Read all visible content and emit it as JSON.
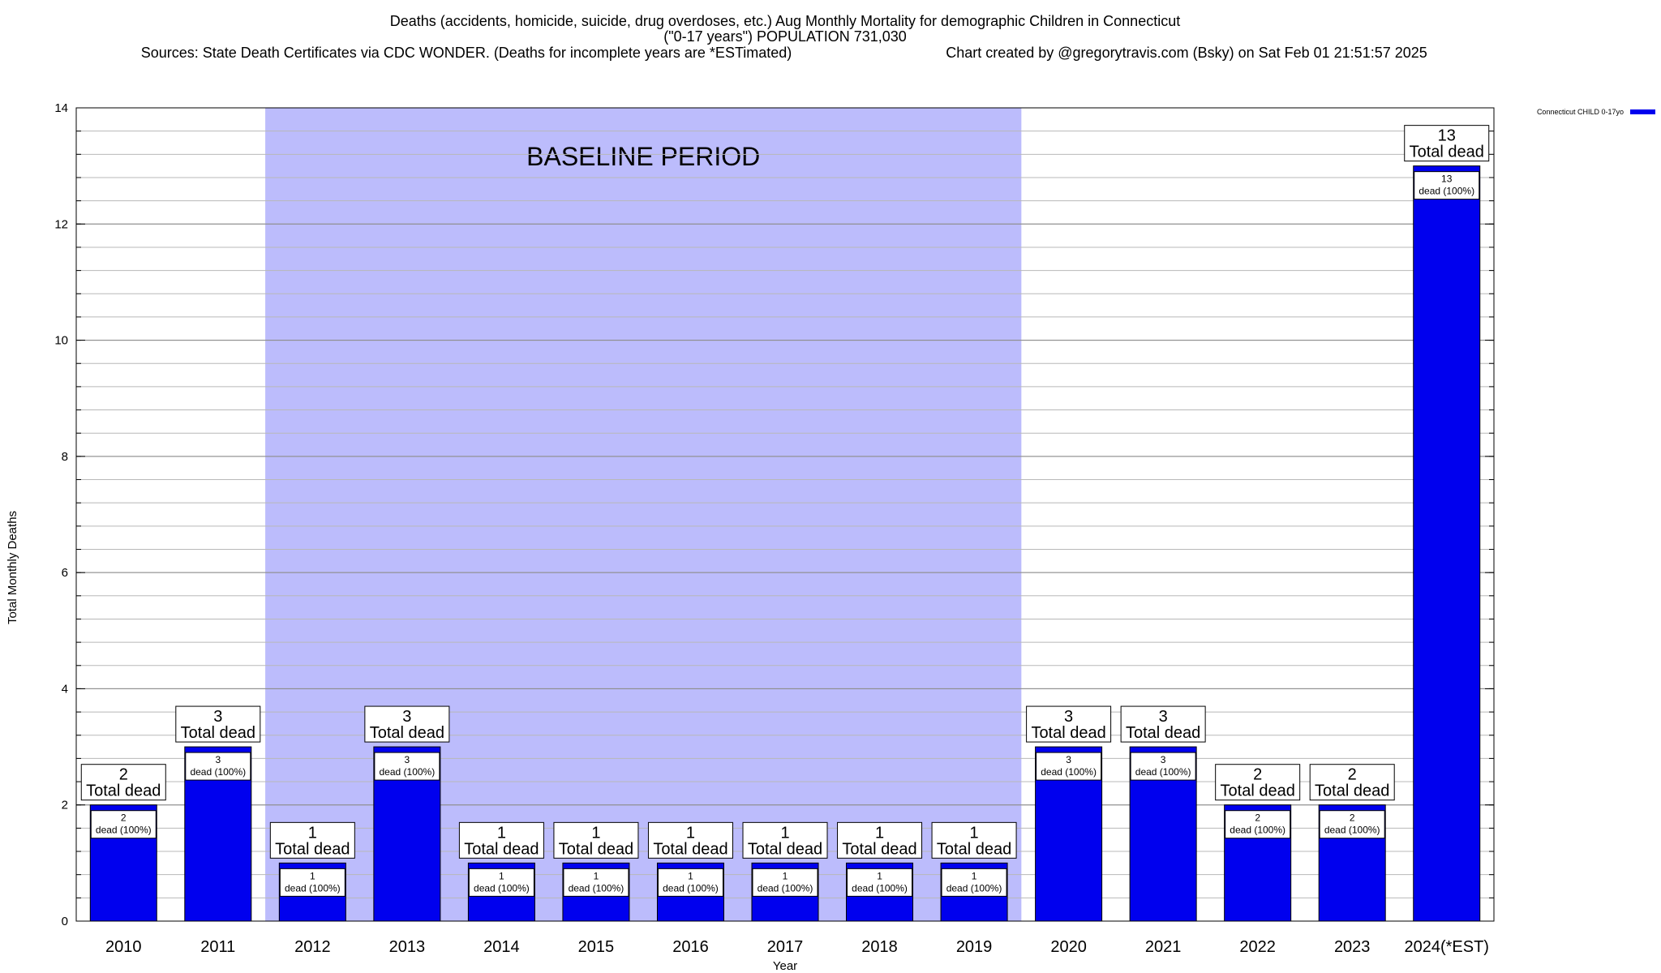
{
  "header": {
    "title_line1": "Deaths (accidents, homicide, suicide, drug overdoses, etc.) Aug Monthly Mortality for demographic Children in Connecticut",
    "title_line2": "(\"0-17 years\") POPULATION 731,030",
    "sources": "Sources: State Death Certificates via CDC WONDER. (Deaths for incomplete years are *ESTimated)",
    "credit": "Chart created by @gregorytravis.com (Bsky) on Sat Feb 01 21:51:57 2025"
  },
  "chart_data": {
    "type": "bar",
    "title": "Deaths (accidents, homicide, suicide, drug overdoses, etc.) Aug Monthly Mortality for demographic Children in Connecticut",
    "xlabel": "Year",
    "ylabel": "Total Monthly Deaths",
    "ylim": [
      0,
      14
    ],
    "yticks": [
      0,
      2,
      4,
      6,
      8,
      10,
      12,
      14
    ],
    "minor_ytick_step": 0.4,
    "grid": true,
    "legend_position": "top-right",
    "categories": [
      "2010",
      "2011",
      "2012",
      "2013",
      "2014",
      "2015",
      "2016",
      "2017",
      "2018",
      "2019",
      "2020",
      "2021",
      "2022",
      "2023",
      "2024(*EST)"
    ],
    "series": [
      {
        "name": "Connecticut CHILD 0-17yo",
        "color": "#0000ee",
        "values": [
          2,
          3,
          1,
          3,
          1,
          1,
          1,
          1,
          1,
          1,
          3,
          3,
          2,
          2,
          13
        ]
      }
    ],
    "bar_label_suffix": "dead (100%)",
    "total_label_text": "Total dead",
    "highlight_band": {
      "label": "BASELINE PERIOD",
      "from": "2012",
      "to": "2019",
      "color": "#bcbcfc"
    }
  }
}
